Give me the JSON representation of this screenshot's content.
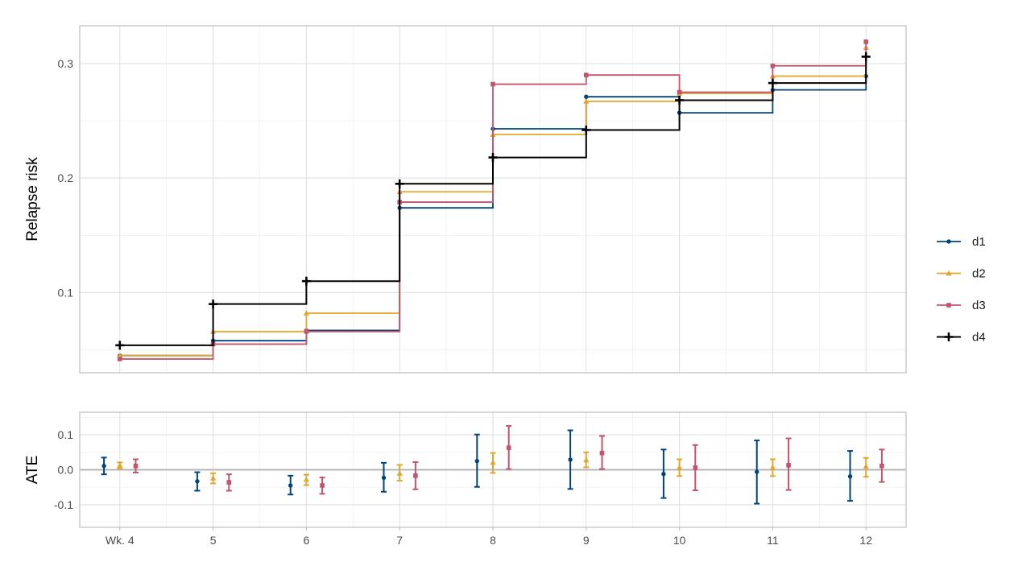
{
  "chart_data": [
    {
      "type": "line",
      "step": true,
      "ylabel": "Relapse risk",
      "ylim": [
        0.03,
        0.333
      ],
      "yticks": [
        "0.1",
        "0.2",
        "0.3"
      ],
      "grid": true,
      "legend": "right",
      "x": [
        4,
        5,
        6,
        7,
        8,
        9,
        10,
        11,
        12
      ],
      "series": [
        {
          "name": "d1",
          "color": "#00447c",
          "marker": "circle",
          "values": [
            0.045,
            0.058,
            0.067,
            0.174,
            0.243,
            0.271,
            0.257,
            0.277,
            0.289
          ]
        },
        {
          "name": "d2",
          "color": "#e1a72f",
          "marker": "triangle",
          "values": [
            0.045,
            0.066,
            0.082,
            0.188,
            0.238,
            0.267,
            0.274,
            0.289,
            0.314
          ]
        },
        {
          "name": "d3",
          "color": "#c2556b",
          "marker": "square",
          "values": [
            0.042,
            0.055,
            0.066,
            0.179,
            0.282,
            0.29,
            0.275,
            0.298,
            0.319
          ]
        },
        {
          "name": "d4",
          "color": "#000000",
          "marker": "cross",
          "values": [
            0.054,
            0.09,
            0.11,
            0.195,
            0.218,
            0.242,
            0.268,
            0.283,
            0.306
          ]
        }
      ]
    },
    {
      "type": "errorbar",
      "ylabel": "ATE",
      "ylim": [
        -0.165,
        0.165
      ],
      "yticks": [
        "0.1",
        "0.0",
        "-0.1"
      ],
      "grid": true,
      "reference_line": 0,
      "x": [
        4,
        5,
        6,
        7,
        8,
        9,
        10,
        11,
        12
      ],
      "xtick_labels": [
        "Wk. 4",
        "5",
        "6",
        "7",
        "8",
        "9",
        "10",
        "11",
        "12"
      ],
      "series": [
        {
          "name": "d1",
          "color": "#00447c",
          "marker": "circle",
          "values": [
            0.011,
            -0.033,
            -0.045,
            -0.023,
            0.025,
            0.029,
            -0.012,
            -0.006,
            -0.019
          ],
          "lower": [
            -0.013,
            -0.06,
            -0.071,
            -0.063,
            -0.049,
            -0.055,
            -0.081,
            -0.097,
            -0.089
          ],
          "upper": [
            0.035,
            -0.007,
            -0.017,
            0.02,
            0.101,
            0.113,
            0.058,
            0.084,
            0.054
          ]
        },
        {
          "name": "d2",
          "color": "#e1a72f",
          "marker": "triangle",
          "values": [
            0.013,
            -0.024,
            -0.028,
            -0.01,
            0.021,
            0.028,
            0.007,
            0.007,
            0.01
          ],
          "lower": [
            0.004,
            -0.039,
            -0.044,
            -0.031,
            -0.009,
            0.007,
            -0.018,
            -0.018,
            -0.02
          ],
          "upper": [
            0.021,
            -0.01,
            -0.014,
            0.014,
            0.048,
            0.05,
            0.03,
            0.03,
            0.034
          ]
        },
        {
          "name": "d3",
          "color": "#c2556b",
          "marker": "square",
          "values": [
            0.011,
            -0.036,
            -0.045,
            -0.017,
            0.063,
            0.048,
            0.006,
            0.013,
            0.011
          ],
          "lower": [
            -0.008,
            -0.06,
            -0.069,
            -0.056,
            0.002,
            0.002,
            -0.059,
            -0.058,
            -0.035
          ],
          "upper": [
            0.03,
            -0.013,
            -0.022,
            0.022,
            0.126,
            0.097,
            0.071,
            0.09,
            0.058
          ]
        }
      ]
    }
  ]
}
